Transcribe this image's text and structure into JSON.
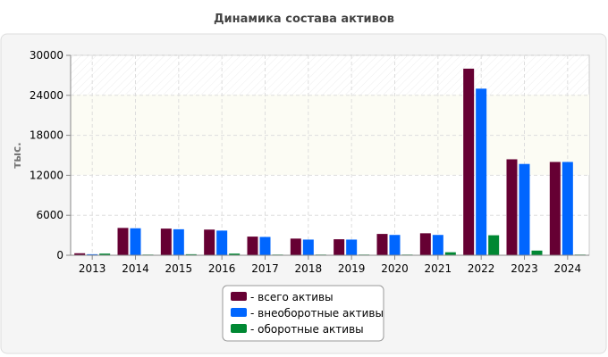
{
  "chart_data": {
    "type": "bar",
    "title": "Динамика состава активов",
    "xlabel": "",
    "ylabel": "тыс.",
    "ylim": [
      0,
      30000
    ],
    "yticks": [
      "0",
      "6000",
      "12000",
      "18000",
      "24000",
      "30000"
    ],
    "ytick_values": [
      0,
      6000,
      12000,
      18000,
      24000,
      30000
    ],
    "categories": [
      "2013",
      "2014",
      "2015",
      "2016",
      "2017",
      "2018",
      "2019",
      "2020",
      "2021",
      "2022",
      "2023",
      "2024"
    ],
    "series": [
      {
        "name": "- всего активы",
        "color": "#660033",
        "values": [
          300,
          4100,
          4000,
          3850,
          2800,
          2500,
          2400,
          3200,
          3300,
          28000,
          14400,
          14000
        ]
      },
      {
        "name": "- внеоборотные активы",
        "color": "#0066ff",
        "values": [
          150,
          4050,
          3900,
          3700,
          2750,
          2350,
          2350,
          3050,
          3050,
          25000,
          13700,
          14000
        ]
      },
      {
        "name": "- оборотные активы",
        "color": "#008833",
        "values": [
          250,
          100,
          150,
          250,
          100,
          100,
          100,
          100,
          450,
          3000,
          700,
          100
        ]
      }
    ],
    "grid": true,
    "legend": "bottom-center"
  }
}
